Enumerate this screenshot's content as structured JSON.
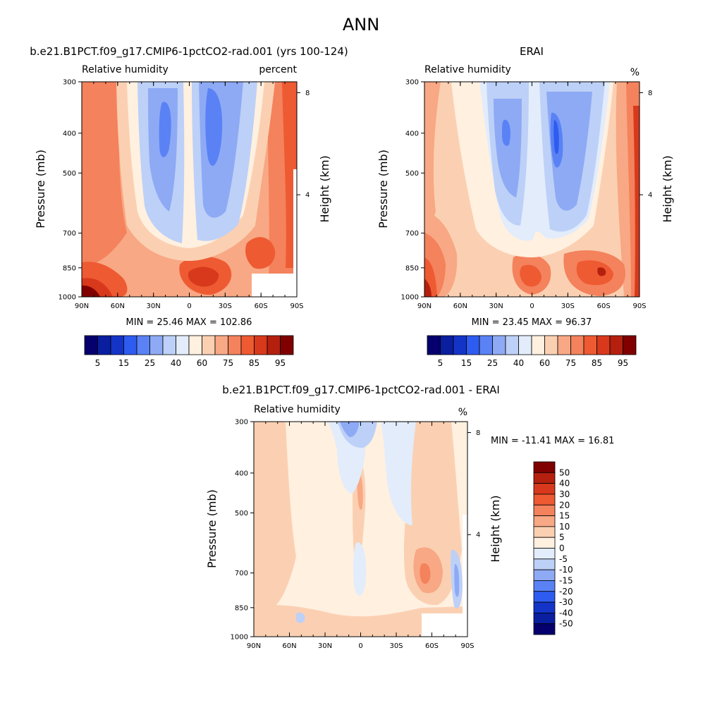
{
  "figure": {
    "title": "ANN"
  },
  "colors": {
    "abs_levels": [
      "#05006e",
      "#0a1ea0",
      "#1434c8",
      "#2e5cf0",
      "#5a82f5",
      "#8eaaf5",
      "#bdd0f7",
      "#e2ecfb",
      "#fff0e0",
      "#fbd0b2",
      "#f8a884",
      "#f4825c",
      "#ee5a32",
      "#d8391c",
      "#b5200e",
      "#800000"
    ],
    "diff_levels": [
      "#05006e",
      "#0a1ea0",
      "#1434c8",
      "#2e5cf0",
      "#5a82f5",
      "#8eaaf5",
      "#bdd0f7",
      "#e2ecfb",
      "#fff0e0",
      "#fbd0b2",
      "#f8a884",
      "#f4825c",
      "#ee5a32",
      "#d8391c",
      "#b5200e",
      "#800000"
    ]
  },
  "chart_data": [
    {
      "type": "heatmap",
      "title": "b.e21.B1PCT.f09_g17.CMIP6-1pctCO2-rad.001 (yrs 100-124)",
      "subtitle_left": "Relative humidity",
      "subtitle_right": "percent",
      "ylabel": "Pressure (mb)",
      "ylabel_right": "Height (km)",
      "x_ticks": [
        "90N",
        "60N",
        "30N",
        "0",
        "30S",
        "60S",
        "90S"
      ],
      "y_ticks": [
        "300",
        "400",
        "500",
        "700",
        "850",
        "1000"
      ],
      "y_right_ticks": [
        "8",
        "4"
      ],
      "xlim": [
        90,
        -90
      ],
      "ylim": [
        1000,
        300
      ],
      "stats": "MIN =  25.46  MAX = 102.86",
      "colorbar_labels": [
        "5",
        "15",
        "25",
        "40",
        "60",
        "75",
        "85",
        "95"
      ],
      "log_scale_y": true
    },
    {
      "type": "heatmap",
      "title": "ERAI",
      "subtitle_left": "Relative humidity",
      "subtitle_right": "%",
      "ylabel": "Pressure (mb)",
      "ylabel_right": "Height (km)",
      "x_ticks": [
        "90N",
        "60N",
        "30N",
        "0",
        "30S",
        "60S",
        "90S"
      ],
      "y_ticks": [
        "300",
        "400",
        "500",
        "700",
        "850",
        "1000"
      ],
      "y_right_ticks": [
        "8",
        "4"
      ],
      "xlim": [
        90,
        -90
      ],
      "ylim": [
        1000,
        300
      ],
      "stats": "MIN =  23.45  MAX =  96.37",
      "colorbar_labels": [
        "5",
        "15",
        "25",
        "40",
        "60",
        "75",
        "85",
        "95"
      ],
      "log_scale_y": true
    },
    {
      "type": "heatmap",
      "title": "b.e21.B1PCT.f09_g17.CMIP6-1pctCO2-rad.001 - ERAI",
      "subtitle_left": "Relative humidity",
      "subtitle_right": "%",
      "ylabel": "Pressure (mb)",
      "ylabel_right": "Height (km)",
      "x_ticks": [
        "90N",
        "60N",
        "30N",
        "0",
        "30S",
        "60S",
        "90S"
      ],
      "y_ticks": [
        "300",
        "400",
        "500",
        "700",
        "850",
        "1000"
      ],
      "y_right_ticks": [
        "8",
        "4"
      ],
      "xlim": [
        90,
        -90
      ],
      "ylim": [
        1000,
        300
      ],
      "stats": "MIN = -11.41  MAX =  16.81",
      "colorbar_labels": [
        "50",
        "40",
        "30",
        "20",
        "15",
        "10",
        "5",
        "0",
        "-5",
        "-10",
        "-15",
        "-20",
        "-30",
        "-40",
        "-50"
      ],
      "log_scale_y": true
    }
  ]
}
